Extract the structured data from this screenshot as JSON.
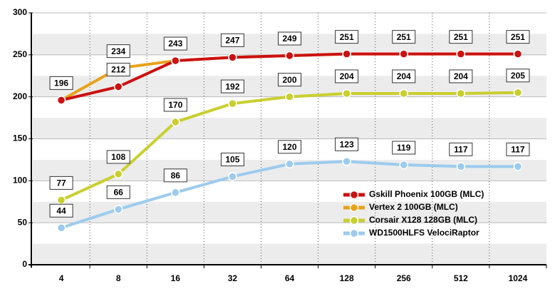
{
  "chart_data": {
    "type": "line",
    "categories": [
      "4",
      "8",
      "16",
      "32",
      "64",
      "128",
      "256",
      "512",
      "1024"
    ],
    "series": [
      {
        "name": "Vertex 2 100GB (MLC)",
        "color": "#e8a21a",
        "values": [
          196,
          234,
          243,
          247,
          249,
          251,
          251,
          251,
          251
        ]
      },
      {
        "name": "Gskill Phoenix  100GB (MLC)",
        "color": "#cc1111",
        "values": [
          196,
          212,
          243,
          247,
          249,
          251,
          251,
          251,
          251
        ]
      },
      {
        "name": "Corsair X128 128GB (MLC)",
        "color": "#c9cf2e",
        "values": [
          77,
          108,
          170,
          192,
          200,
          204,
          204,
          204,
          205
        ]
      },
      {
        "name": "WD1500HLFS VelociRaptor",
        "color": "#9ccbee",
        "values": [
          44,
          66,
          86,
          105,
          120,
          123,
          119,
          117,
          117
        ]
      }
    ],
    "legend_order": [
      1,
      0,
      2,
      3
    ],
    "ylim": [
      0,
      300
    ],
    "yticks": [
      0,
      50,
      100,
      150,
      200,
      250,
      300
    ],
    "grid": true
  }
}
